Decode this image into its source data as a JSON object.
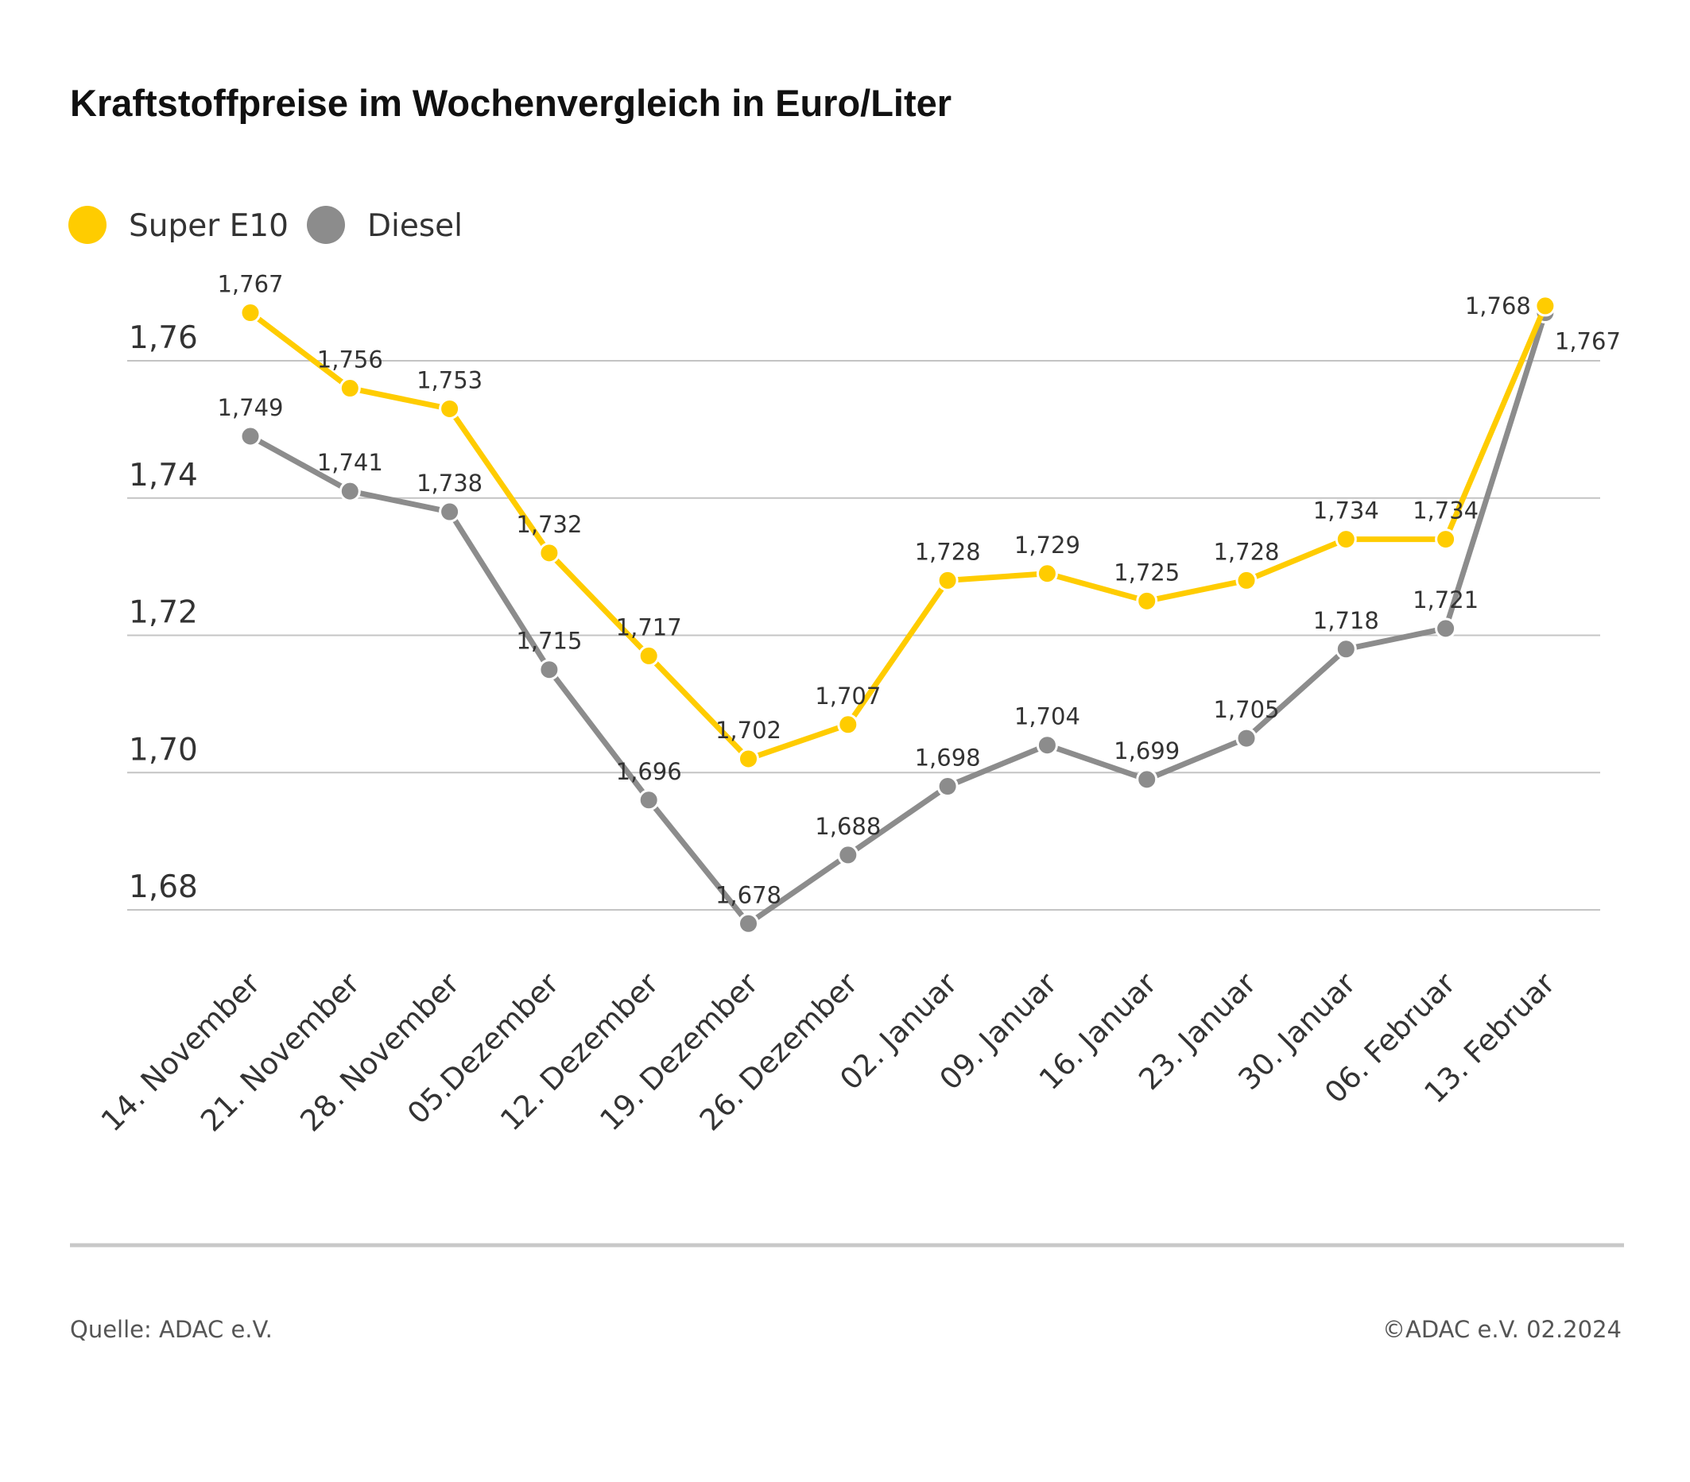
{
  "title": "Kraftstoffpreise im Wochenvergleich in Euro/Liter",
  "legend": [
    {
      "label": "Super E10",
      "color": "#ffcc00"
    },
    {
      "label": "Diesel",
      "color": "#8c8c8c"
    }
  ],
  "footer": {
    "source": "Quelle: ADAC e.V.",
    "copyright": "©ADAC e.V. 02.2024"
  },
  "chart_data": {
    "type": "line",
    "title": "Kraftstoffpreise im Wochenvergleich in Euro/Liter",
    "categories": [
      "14. November",
      "21. November",
      "28. November",
      "05.Dezember",
      "12. Dezember",
      "19. Dezember",
      "26. Dezember",
      "02. Januar",
      "09. Januar",
      "16. Januar",
      "23. Januar",
      "30. Januar",
      "06. Februar",
      "13. Februar"
    ],
    "series": [
      {
        "name": "Super E10",
        "color": "#ffcc00",
        "values": [
          1.767,
          1.756,
          1.753,
          1.732,
          1.717,
          1.702,
          1.707,
          1.728,
          1.729,
          1.725,
          1.728,
          1.734,
          1.734,
          1.768
        ],
        "labels": [
          "1,767",
          "1,756",
          "1,753",
          "1,732",
          "1,717",
          "1,702",
          "1,707",
          "1,728",
          "1,729",
          "1,725",
          "1,728",
          "1,734",
          "1,734",
          "1,768"
        ]
      },
      {
        "name": "Diesel",
        "color": "#8c8c8c",
        "values": [
          1.749,
          1.741,
          1.738,
          1.715,
          1.696,
          1.678,
          1.688,
          1.698,
          1.704,
          1.699,
          1.705,
          1.718,
          1.721,
          1.767
        ],
        "labels": [
          "1,749",
          "1,741",
          "1,738",
          "1,715",
          "1,696",
          "1,678",
          "1,688",
          "1,698",
          "1,704",
          "1,699",
          "1,705",
          "1,718",
          "1,721",
          "1,767"
        ]
      }
    ],
    "yticks": [
      1.68,
      1.7,
      1.72,
      1.74,
      1.76
    ],
    "ytick_labels": [
      "1,68",
      "1,70",
      "1,72",
      "1,74",
      "1,76"
    ],
    "ylim": [
      1.68,
      1.76
    ],
    "grid": true,
    "legend_position": "top-left"
  }
}
